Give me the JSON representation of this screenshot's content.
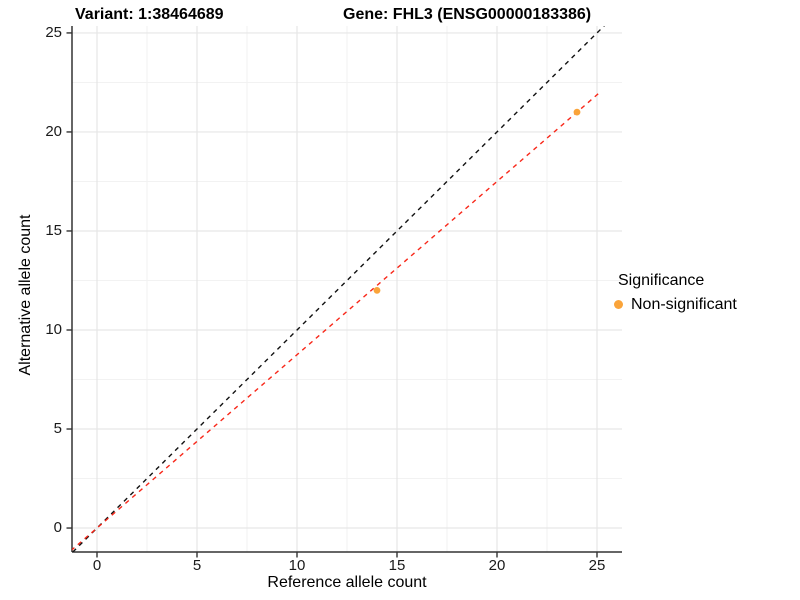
{
  "chart_data": {
    "type": "scatter",
    "title_variant": "Variant: 1:38464689",
    "title_gene": "Gene: FHL3 (ENSG00000183386)",
    "xlabel": "Reference allele count",
    "ylabel": "Alternative allele count",
    "xlim": [
      -1.25,
      26.25
    ],
    "ylim": [
      -1.21,
      25.35
    ],
    "x_major_ticks": [
      0,
      5,
      10,
      15,
      20,
      25
    ],
    "y_major_ticks": [
      0,
      5,
      10,
      15,
      20,
      25
    ],
    "x_minor_ticks": [
      2.5,
      7.5,
      12.5,
      17.5,
      22.5
    ],
    "y_minor_ticks": [
      2.5,
      7.5,
      12.5,
      17.5,
      22.5
    ],
    "grid": true,
    "series": [
      {
        "name": "Non-significant",
        "color": "#FAA43A",
        "points": [
          {
            "x": 14,
            "y": 12
          },
          {
            "x": 24,
            "y": 21
          }
        ]
      }
    ],
    "lines": [
      {
        "name": "identity-line",
        "slope": 1,
        "intercept": 0,
        "color": "#111111",
        "style": "dashed",
        "x_start": -1.21,
        "x_end": 25.4
      },
      {
        "name": "fit-line",
        "slope": 0.875,
        "intercept": 0,
        "color": "#F8281A",
        "style": "dashed",
        "x_start": -1.3,
        "x_end": 25.12
      }
    ],
    "legend": {
      "title": "Significance",
      "position": "right",
      "items": [
        {
          "label": "Non-significant",
          "color": "#FAA43A"
        }
      ]
    },
    "colors": {
      "grid_major": "#E6E6E6",
      "grid_minor": "#F2F2F2",
      "axis_line": "#333333",
      "tick_mark": "#333333",
      "point": "#FAA43A"
    }
  }
}
